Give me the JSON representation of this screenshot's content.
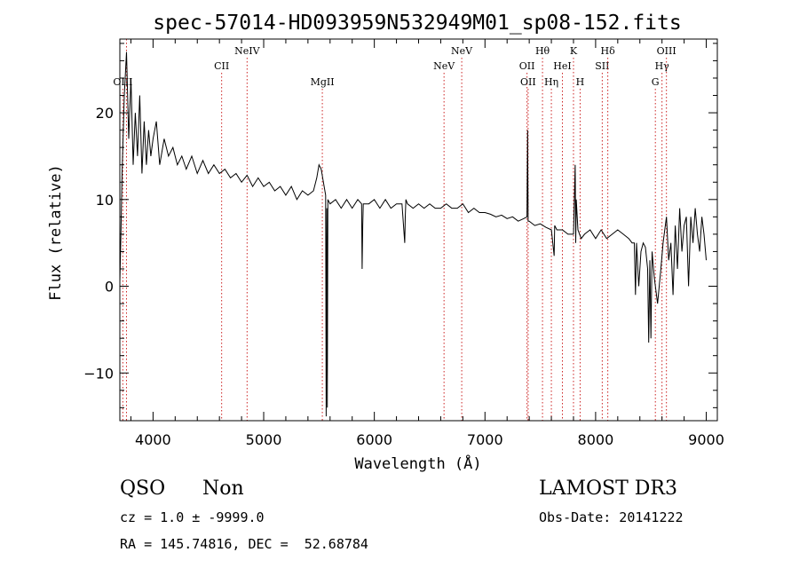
{
  "chart_data": {
    "type": "line",
    "title": "spec-57014-HD093959N532949M01_sp08-152.fits",
    "xlabel": "Wavelength (Å)",
    "ylabel": "Flux (relative)",
    "xlim": [
      3700,
      9100
    ],
    "ylim": [
      -15.5,
      28.5
    ],
    "xticks": [
      4000,
      5000,
      6000,
      7000,
      8000,
      9000
    ],
    "yticks": [
      -10,
      0,
      10,
      20
    ],
    "line_color": "#000000",
    "marker_color": "#cc2222",
    "lines": [
      {
        "label": "OIII",
        "wave": 3727,
        "level": 3
      },
      {
        "label": "",
        "wave": 3760,
        "level": 3
      },
      {
        "label": "CII",
        "wave": 4620,
        "level": 2
      },
      {
        "label": "NeIV",
        "wave": 4850,
        "level": 1
      },
      {
        "label": "MgII",
        "wave": 5530,
        "level": 3
      },
      {
        "label": "NeV",
        "wave": 6630,
        "level": 2
      },
      {
        "label": "NeV",
        "wave": 6790,
        "level": 1
      },
      {
        "label": "OII",
        "wave": 7380,
        "level": 2
      },
      {
        "label": "OII",
        "wave": 7390,
        "level": 3
      },
      {
        "label": "Hθ",
        "wave": 7520,
        "level": 1
      },
      {
        "label": "Hη",
        "wave": 7600,
        "level": 3
      },
      {
        "label": "HeI",
        "wave": 7700,
        "level": 2
      },
      {
        "label": "K",
        "wave": 7800,
        "level": 1
      },
      {
        "label": "H",
        "wave": 7860,
        "level": 3
      },
      {
        "label": "SII",
        "wave": 8060,
        "level": 2
      },
      {
        "label": "Hδ",
        "wave": 8110,
        "level": 1
      },
      {
        "label": "G",
        "wave": 8540,
        "level": 3
      },
      {
        "label": "Hγ",
        "wave": 8600,
        "level": 2
      },
      {
        "label": "OIII",
        "wave": 8640,
        "level": 1
      }
    ],
    "series": [
      {
        "x": [
          3700,
          3710,
          3720,
          3740,
          3760,
          3780,
          3800,
          3820,
          3840,
          3860,
          3880,
          3900,
          3920,
          3940,
          3960,
          3980,
          4000,
          4030,
          4060,
          4100,
          4140,
          4180,
          4220,
          4260,
          4300,
          4350,
          4400,
          4450,
          4500,
          4550,
          4600,
          4650,
          4700,
          4750,
          4800,
          4850,
          4900,
          4950,
          5000,
          5050,
          5100,
          5150,
          5200,
          5250,
          5300,
          5350,
          5400,
          5450,
          5480,
          5500,
          5520,
          5540,
          5560,
          5565,
          5570,
          5575,
          5580,
          5600,
          5650,
          5700,
          5750,
          5800,
          5850,
          5885,
          5890,
          5895,
          5900,
          5950,
          6000,
          6050,
          6100,
          6150,
          6200,
          6250,
          6275,
          6280,
          6285,
          6300,
          6350,
          6400,
          6450,
          6500,
          6550,
          6600,
          6650,
          6700,
          6750,
          6800,
          6850,
          6900,
          6950,
          7000,
          7050,
          7100,
          7150,
          7200,
          7250,
          7300,
          7350,
          7380,
          7385,
          7390,
          7400,
          7450,
          7500,
          7550,
          7600,
          7625,
          7630,
          7650,
          7700,
          7750,
          7800,
          7815,
          7820,
          7825,
          7840,
          7870,
          7900,
          7950,
          8000,
          8050,
          8100,
          8150,
          8200,
          8250,
          8300,
          8330,
          8350,
          8360,
          8370,
          8390,
          8410,
          8430,
          8450,
          8470,
          8480,
          8490,
          8500,
          8510,
          8530,
          8560,
          8590,
          8610,
          8640,
          8660,
          8680,
          8700,
          8720,
          8740,
          8760,
          8780,
          8800,
          8820,
          8840,
          8860,
          8880,
          8900,
          8920,
          8940,
          8960,
          8980,
          9000
        ],
        "y": [
          0.5,
          6,
          13,
          22,
          27,
          17,
          24,
          14,
          20,
          15,
          22,
          13,
          19,
          14,
          18,
          15,
          17,
          19,
          14,
          17,
          15,
          16,
          14,
          15,
          13.5,
          15,
          13,
          14.5,
          13,
          14,
          13,
          13.5,
          12.5,
          13,
          12,
          12.8,
          11.5,
          12.5,
          11.5,
          12,
          11,
          11.5,
          10.5,
          11.5,
          10,
          11,
          10.5,
          11,
          12.5,
          14,
          13.5,
          12,
          10.5,
          -15,
          9,
          -14,
          10,
          9.5,
          10,
          9,
          10,
          9,
          10,
          9.5,
          2,
          7,
          9.5,
          9.5,
          10,
          9,
          10,
          9,
          9.5,
          9.5,
          5,
          8,
          10,
          9.5,
          9,
          9.5,
          9,
          9.5,
          9,
          9,
          9.5,
          9,
          9,
          9.5,
          8.5,
          9,
          8.5,
          8.5,
          8.3,
          8,
          8.2,
          7.8,
          8,
          7.5,
          7.8,
          8,
          18,
          7.5,
          7.5,
          7,
          7.2,
          6.8,
          6.5,
          3.5,
          7,
          6.5,
          6.5,
          6,
          6,
          14,
          5,
          10,
          6.5,
          5.5,
          6,
          6.5,
          5.5,
          6.5,
          5.5,
          6,
          6.5,
          6,
          5.5,
          5,
          5,
          -1,
          5,
          0,
          4,
          5,
          4.5,
          2,
          -6.5,
          3,
          -6,
          4,
          1,
          -2,
          2,
          5,
          8,
          3,
          5,
          -1,
          7,
          2,
          9,
          4,
          7,
          8,
          0,
          8,
          5,
          9,
          6,
          4,
          8,
          6,
          3
        ]
      }
    ]
  },
  "info": {
    "class": "QSO",
    "subclass": "Non",
    "cz": "cz = 1.0 ± -9999.0",
    "radec": "RA = 145.74816, DEC =  52.68784",
    "survey": "LAMOST DR3",
    "obsdate": "Obs-Date: 20141222"
  }
}
